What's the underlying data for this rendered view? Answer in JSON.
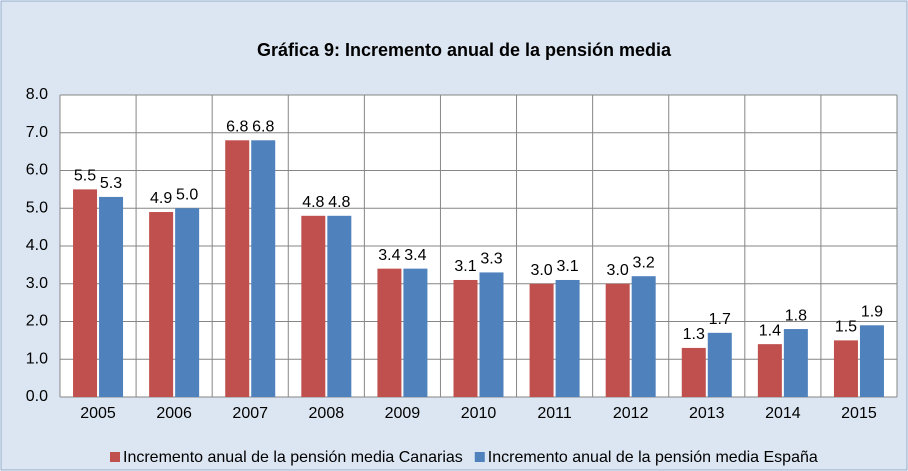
{
  "chart_data": {
    "type": "bar",
    "title": "Gráfica 9: Incremento anual de la pensión media",
    "categories": [
      "2005",
      "2006",
      "2007",
      "2008",
      "2009",
      "2010",
      "2011",
      "2012",
      "2013",
      "2014",
      "2015"
    ],
    "series": [
      {
        "name": "Incremento anual de la pensión media Canarias",
        "color": "#c0504d",
        "values": [
          5.5,
          4.9,
          6.8,
          4.8,
          3.4,
          3.1,
          3.0,
          3.0,
          1.3,
          1.4,
          1.5
        ],
        "value_labels": [
          "5.5",
          "4.9",
          "6.8",
          "4.8",
          "3.4",
          "3.1",
          "3.0",
          "3.0",
          "1.3",
          "1.4",
          "1.5"
        ]
      },
      {
        "name": "Incremento anual de la pensión media España",
        "color": "#4f81bd",
        "values": [
          5.3,
          5.0,
          6.8,
          4.8,
          3.4,
          3.3,
          3.1,
          3.2,
          1.7,
          1.8,
          1.9
        ],
        "value_labels": [
          "5.3",
          "5.0",
          "6.8",
          "4.8",
          "3.4",
          "3.3",
          "3.1",
          "3.2",
          "1.7",
          "1.8",
          "1.9"
        ]
      }
    ],
    "ylim": [
      0,
      8
    ],
    "yticks": [
      {
        "value": 0,
        "label": "0.0"
      },
      {
        "value": 1,
        "label": "1.0"
      },
      {
        "value": 2,
        "label": "2.0"
      },
      {
        "value": 3,
        "label": "3.0"
      },
      {
        "value": 4,
        "label": "4.0"
      },
      {
        "value": 5,
        "label": "5.0"
      },
      {
        "value": 6,
        "label": "6.0"
      },
      {
        "value": 7,
        "label": "7.0"
      },
      {
        "value": 8,
        "label": "8.0"
      }
    ],
    "grid": true,
    "legend": "bottom"
  }
}
